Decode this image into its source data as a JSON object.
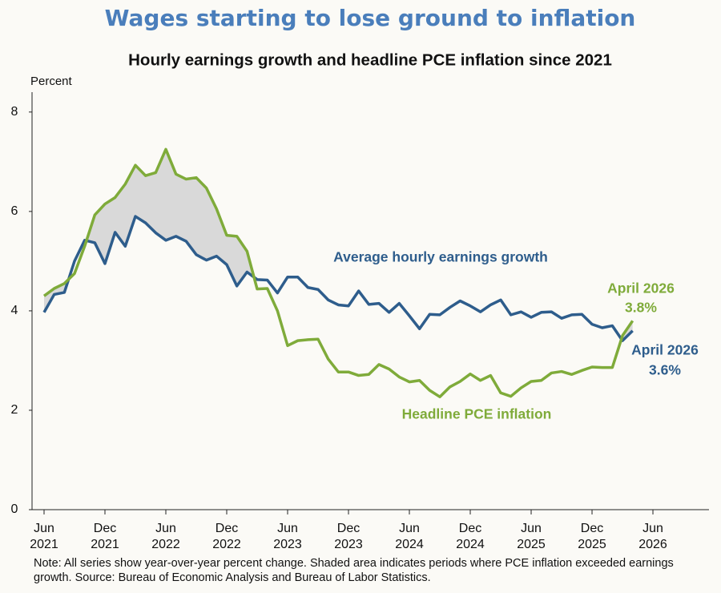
{
  "chart_data": {
    "type": "line",
    "title": "Wages starting to lose ground to inflation",
    "subtitle": "Hourly earnings growth and headline PCE inflation since 2021",
    "y_label": "Percent",
    "note": "Note: All series show year-over-year percent change. Shaded area indicates periods where PCE inflation exceeded earnings growth. Source: Bureau of Economic Analysis and Bureau of Labor Statistics.",
    "x": [
      "2021-06",
      "2021-07",
      "2021-08",
      "2021-09",
      "2021-10",
      "2021-11",
      "2021-12",
      "2022-01",
      "2022-02",
      "2022-03",
      "2022-04",
      "2022-05",
      "2022-06",
      "2022-07",
      "2022-08",
      "2022-09",
      "2022-10",
      "2022-11",
      "2022-12",
      "2023-01",
      "2023-02",
      "2023-03",
      "2023-04",
      "2023-05",
      "2023-06",
      "2023-07",
      "2023-08",
      "2023-09",
      "2023-10",
      "2023-11",
      "2023-12",
      "2024-01",
      "2024-02",
      "2024-03",
      "2024-04",
      "2024-05",
      "2024-06",
      "2024-07",
      "2024-08",
      "2024-09",
      "2024-10",
      "2024-11",
      "2024-12",
      "2025-01",
      "2025-02",
      "2025-03",
      "2025-04",
      "2025-05",
      "2025-06",
      "2025-07",
      "2025-08",
      "2025-09",
      "2025-10",
      "2025-11",
      "2025-12",
      "2026-01",
      "2026-02",
      "2026-03",
      "2026-04"
    ],
    "xticks": [
      {
        "value": "2021-06",
        "label": [
          "Jun",
          "2021"
        ]
      },
      {
        "value": "2021-12",
        "label": [
          "Dec",
          "2021"
        ]
      },
      {
        "value": "2022-06",
        "label": [
          "Jun",
          "2022"
        ]
      },
      {
        "value": "2022-12",
        "label": [
          "Dec",
          "2022"
        ]
      },
      {
        "value": "2023-06",
        "label": [
          "Jun",
          "2023"
        ]
      },
      {
        "value": "2023-12",
        "label": [
          "Dec",
          "2023"
        ]
      },
      {
        "value": "2024-06",
        "label": [
          "Jun",
          "2024"
        ]
      },
      {
        "value": "2024-12",
        "label": [
          "Dec",
          "2024"
        ]
      },
      {
        "value": "2025-06",
        "label": [
          "Jun",
          "2025"
        ]
      },
      {
        "value": "2025-12",
        "label": [
          "Dec",
          "2025"
        ]
      },
      {
        "value": "2026-06",
        "label": [
          "Jun",
          "2026"
        ]
      }
    ],
    "ylim": [
      0,
      8.4
    ],
    "yticks": [
      0,
      2,
      4,
      6,
      8
    ],
    "shade_color": "#d9d9d9",
    "series": [
      {
        "name": "Average hourly earnings growth",
        "color": "#2e5d8c",
        "values": [
          3.97,
          4.33,
          4.37,
          5.0,
          5.42,
          5.37,
          4.95,
          5.58,
          5.3,
          5.9,
          5.77,
          5.57,
          5.42,
          5.5,
          5.4,
          5.13,
          5.02,
          5.1,
          4.93,
          4.5,
          4.78,
          4.63,
          4.62,
          4.36,
          4.68,
          4.68,
          4.47,
          4.43,
          4.22,
          4.12,
          4.1,
          4.4,
          4.13,
          4.15,
          3.97,
          4.15,
          3.9,
          3.64,
          3.93,
          3.92,
          4.07,
          4.2,
          4.1,
          3.98,
          4.12,
          4.22,
          3.92,
          3.98,
          3.87,
          3.97,
          3.98,
          3.85,
          3.92,
          3.93,
          3.73,
          3.66,
          3.7,
          3.4,
          3.6
        ]
      },
      {
        "name": "Headline PCE inflation",
        "color": "#7fab3a",
        "values": [
          4.3,
          4.45,
          4.55,
          4.75,
          5.3,
          5.93,
          6.15,
          6.28,
          6.55,
          6.93,
          6.72,
          6.78,
          7.25,
          6.75,
          6.65,
          6.68,
          6.47,
          6.05,
          5.52,
          5.5,
          5.2,
          4.44,
          4.45,
          4.0,
          3.3,
          3.4,
          3.42,
          3.43,
          3.03,
          2.77,
          2.77,
          2.7,
          2.72,
          2.92,
          2.83,
          2.67,
          2.57,
          2.6,
          2.4,
          2.27,
          2.47,
          2.58,
          2.73,
          2.6,
          2.7,
          2.35,
          2.28,
          2.45,
          2.58,
          2.6,
          2.75,
          2.78,
          2.72,
          2.8,
          2.87,
          2.86,
          2.86,
          3.5,
          3.8
        ]
      }
    ],
    "annotations": [
      {
        "series": 1,
        "text": "April 2026",
        "label": "3.8%",
        "value": 3.8
      },
      {
        "series": 0,
        "text": "April 2026",
        "label": "3.6%",
        "value": 3.6
      }
    ]
  }
}
